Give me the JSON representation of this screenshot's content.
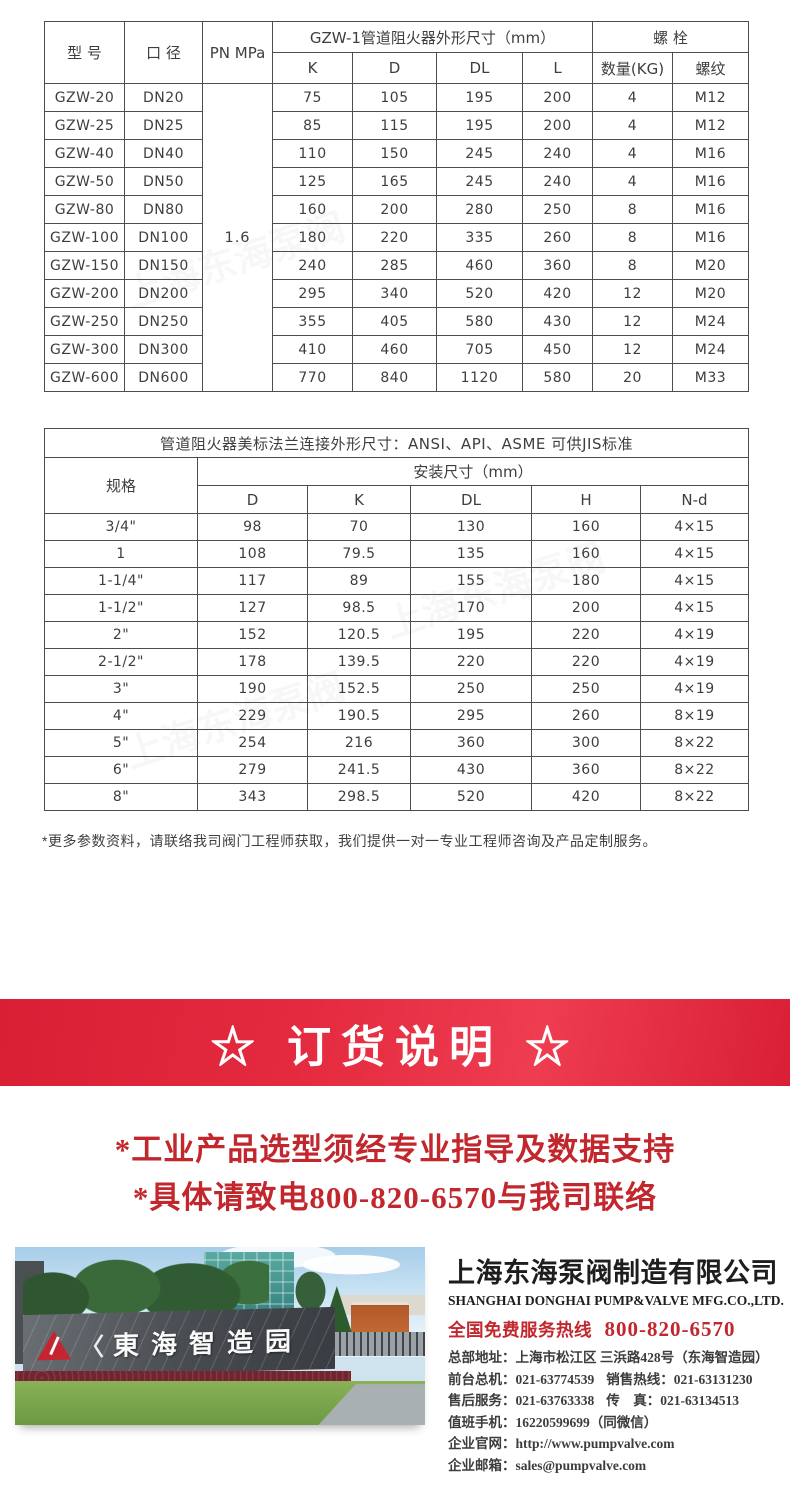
{
  "colors": {
    "accent_red": "#c1272d",
    "banner_red": "#e02339"
  },
  "table1": {
    "group_title": "GZW-1管道阻火器外形尺寸（mm）",
    "col_model": "型 号",
    "col_dn": "口 径",
    "col_pn": "PN MPa",
    "bolt_title": "螺 栓",
    "sub_cols": [
      "K",
      "D",
      "DL",
      "L"
    ],
    "bolt_cols": [
      "数量(KG)",
      "螺纹"
    ],
    "pn_value": "1.6",
    "rows": [
      [
        "GZW-20",
        "DN20",
        "75",
        "105",
        "195",
        "200",
        "4",
        "M12"
      ],
      [
        "GZW-25",
        "DN25",
        "85",
        "115",
        "195",
        "200",
        "4",
        "M12"
      ],
      [
        "GZW-40",
        "DN40",
        "110",
        "150",
        "245",
        "240",
        "4",
        "M16"
      ],
      [
        "GZW-50",
        "DN50",
        "125",
        "165",
        "245",
        "240",
        "4",
        "M16"
      ],
      [
        "GZW-80",
        "DN80",
        "160",
        "200",
        "280",
        "250",
        "8",
        "M16"
      ],
      [
        "GZW-100",
        "DN100",
        "180",
        "220",
        "335",
        "260",
        "8",
        "M16"
      ],
      [
        "GZW-150",
        "DN150",
        "240",
        "285",
        "460",
        "360",
        "8",
        "M20"
      ],
      [
        "GZW-200",
        "DN200",
        "295",
        "340",
        "520",
        "420",
        "12",
        "M20"
      ],
      [
        "GZW-250",
        "DN250",
        "355",
        "405",
        "580",
        "430",
        "12",
        "M24"
      ],
      [
        "GZW-300",
        "DN300",
        "410",
        "460",
        "705",
        "450",
        "12",
        "M24"
      ],
      [
        "GZW-600",
        "DN600",
        "770",
        "840",
        "1120",
        "580",
        "20",
        "M33"
      ]
    ]
  },
  "table2": {
    "title": "管道阻火器美标法兰连接外形尺寸：ANSI、API、ASME 可供JIS标准",
    "col_spec": "规格",
    "group_title": "安装尺寸（mm）",
    "sub_cols": [
      "D",
      "K",
      "DL",
      "H",
      "N-d"
    ],
    "rows": [
      [
        "3/4\"",
        "98",
        "70",
        "130",
        "160",
        "4×15"
      ],
      [
        "1",
        "108",
        "79.5",
        "135",
        "160",
        "4×15"
      ],
      [
        "1-1/4\"",
        "117",
        "89",
        "155",
        "180",
        "4×15"
      ],
      [
        "1-1/2\"",
        "127",
        "98.5",
        "170",
        "200",
        "4×15"
      ],
      [
        "2\"",
        "152",
        "120.5",
        "195",
        "220",
        "4×19"
      ],
      [
        "2-1/2\"",
        "178",
        "139.5",
        "220",
        "220",
        "4×19"
      ],
      [
        "3\"",
        "190",
        "152.5",
        "250",
        "250",
        "4×19"
      ],
      [
        "4\"",
        "229",
        "190.5",
        "295",
        "260",
        "8×19"
      ],
      [
        "5\"",
        "254",
        "216",
        "360",
        "300",
        "8×22"
      ],
      [
        "6\"",
        "279",
        "241.5",
        "430",
        "360",
        "8×22"
      ],
      [
        "8\"",
        "343",
        "298.5",
        "520",
        "420",
        "8×22"
      ]
    ]
  },
  "note": "*更多参数资料，请联络我司阀门工程师获取，我们提供一对一专业工程师咨询及产品定制服务。",
  "banner": {
    "title": "☆ 订货说明 ☆"
  },
  "notice": {
    "lines": [
      "*工业产品选型须经专业指导及数据支持",
      "*具体请致电800-820-6570与我司联络"
    ]
  },
  "photo": {
    "angle_mark": "〈",
    "sign_text": "東海智造园"
  },
  "company": {
    "name_cn": "上海东海泵阀制造有限公司",
    "name_en": "SHANGHAI DONGHAI PUMP&VALVE MFG.CO.,LTD.",
    "hotline_label": "全国免费服务热线",
    "hotline_number": "800-820-6570",
    "contact_lines": [
      [
        {
          "label": "总部地址：",
          "value": "上海市松江区 三浜路428号（东海智造园）"
        }
      ],
      [
        {
          "label": "前台总机：",
          "value": "021-63774539"
        },
        {
          "label": "销售热线：",
          "value": "021-63131230"
        }
      ],
      [
        {
          "label": "售后服务：",
          "value": "021-63763338"
        },
        {
          "label": "传　真：",
          "value": "021-63134513"
        }
      ],
      [
        {
          "label": "值班手机：",
          "value": "16220599699（同微信）"
        }
      ],
      [
        {
          "label": "企业官网：",
          "value": "http://www.pumpvalve.com",
          "link": true
        }
      ],
      [
        {
          "label": "企业邮箱：",
          "value": "sales@pumpvalve.com",
          "link": true
        }
      ]
    ]
  },
  "watermark_text": "上海东海泵阀"
}
